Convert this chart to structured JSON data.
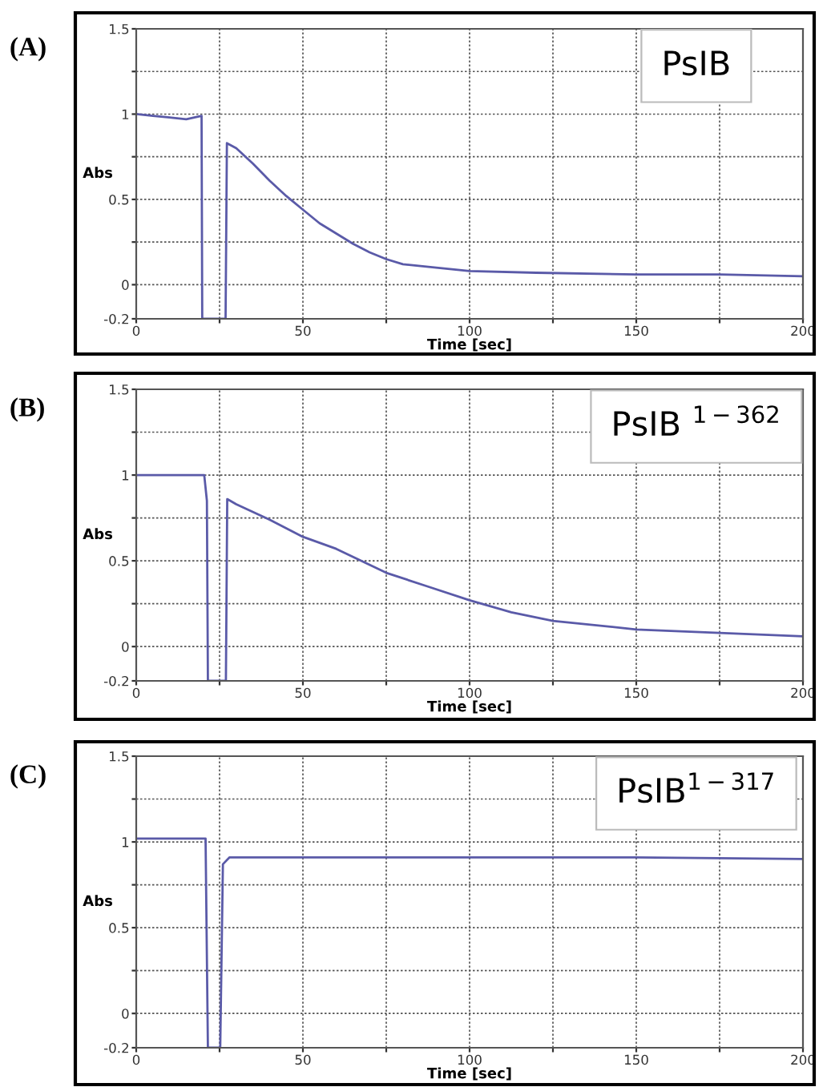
{
  "chart_data": [
    {
      "type": "line",
      "title": "(A)",
      "xlabel": "Time [sec]",
      "ylabel": "Abs",
      "annotations": [
        "PsIB"
      ],
      "series": [
        {
          "color": "#5a5aa8",
          "x": [
            0,
            5,
            10,
            15,
            19.6,
            19.8,
            26.8,
            27.2,
            30,
            35,
            40,
            45,
            50,
            55,
            60,
            65,
            70,
            75,
            80,
            90,
            100,
            120,
            150,
            175,
            200
          ],
          "values": [
            1.0,
            0.99,
            0.98,
            0.97,
            0.99,
            -0.2,
            -0.2,
            0.83,
            0.8,
            0.71,
            0.61,
            0.52,
            0.44,
            0.36,
            0.3,
            0.24,
            0.19,
            0.15,
            0.12,
            0.1,
            0.08,
            0.07,
            0.06,
            0.06,
            0.05
          ]
        }
      ],
      "xlim": [
        0,
        200
      ],
      "ylim": [
        -0.2,
        1.5
      ],
      "xticks": [
        0,
        {
          "value": 25,
          "label": null
        },
        50,
        {
          "value": 75,
          "label": null
        },
        100,
        {
          "value": 125,
          "label": null
        },
        150,
        {
          "value": 175,
          "label": null
        },
        200
      ],
      "yticks": [
        -0.2,
        0,
        {
          "value": 0.25,
          "label": null
        },
        0.5,
        {
          "value": 0.75,
          "label": null
        },
        1,
        {
          "value": 1.25,
          "label": null
        },
        1.5
      ],
      "grid": true,
      "line_style": "solid",
      "marker": "none"
    },
    {
      "type": "line",
      "title": "(B)",
      "xlabel": "Time [sec]",
      "ylabel": "Abs",
      "annotations": [
        "PsIB $^{1−362}$"
      ],
      "series": [
        {
          "color": "#5a5aa8",
          "x": [
            0,
            10,
            20.4,
            21.2,
            21.5,
            26.9,
            27.3,
            30,
            40,
            50,
            60,
            75,
            87.5,
            100,
            112.5,
            125,
            150,
            175,
            200
          ],
          "values": [
            1.0,
            1.0,
            1.0,
            0.85,
            -0.2,
            -0.2,
            0.86,
            0.83,
            0.74,
            0.64,
            0.57,
            0.43,
            0.35,
            0.27,
            0.2,
            0.15,
            0.1,
            0.08,
            0.06
          ]
        }
      ],
      "xlim": [
        0,
        200
      ],
      "ylim": [
        -0.2,
        1.5
      ],
      "xticks": [
        0,
        {
          "value": 25,
          "label": null
        },
        50,
        {
          "value": 75,
          "label": null
        },
        100,
        {
          "value": 125,
          "label": null
        },
        150,
        {
          "value": 175,
          "label": null
        },
        200
      ],
      "yticks": [
        -0.2,
        0,
        {
          "value": 0.25,
          "label": null
        },
        0.5,
        {
          "value": 0.75,
          "label": null
        },
        1,
        {
          "value": 1.25,
          "label": null
        },
        1.5
      ],
      "grid": true,
      "line_style": "solid",
      "marker": "none"
    },
    {
      "type": "line",
      "title": "(C)",
      "xlabel": "Time [sec]",
      "ylabel": "Abs",
      "annotations": [
        "PsIB$^{1−317}$"
      ],
      "series": [
        {
          "color": "#5a5aa8",
          "x": [
            0,
            10,
            20.8,
            21.5,
            25.2,
            26,
            28,
            50,
            100,
            150,
            200
          ],
          "values": [
            1.02,
            1.02,
            1.02,
            -0.2,
            -0.2,
            0.87,
            0.91,
            0.91,
            0.91,
            0.91,
            0.9
          ]
        }
      ],
      "xlim": [
        0,
        200
      ],
      "ylim": [
        -0.2,
        1.5
      ],
      "xticks": [
        0,
        {
          "value": 25,
          "label": null
        },
        50,
        {
          "value": 75,
          "label": null
        },
        100,
        {
          "value": 125,
          "label": null
        },
        150,
        {
          "value": 175,
          "label": null
        },
        200
      ],
      "yticks": [
        -0.2,
        0,
        {
          "value": 0.25,
          "label": null
        },
        0.5,
        {
          "value": 0.75,
          "label": null
        },
        1,
        {
          "value": 1.25,
          "label": null
        },
        1.5
      ],
      "grid": true,
      "line_style": "solid",
      "marker": "none"
    }
  ]
}
